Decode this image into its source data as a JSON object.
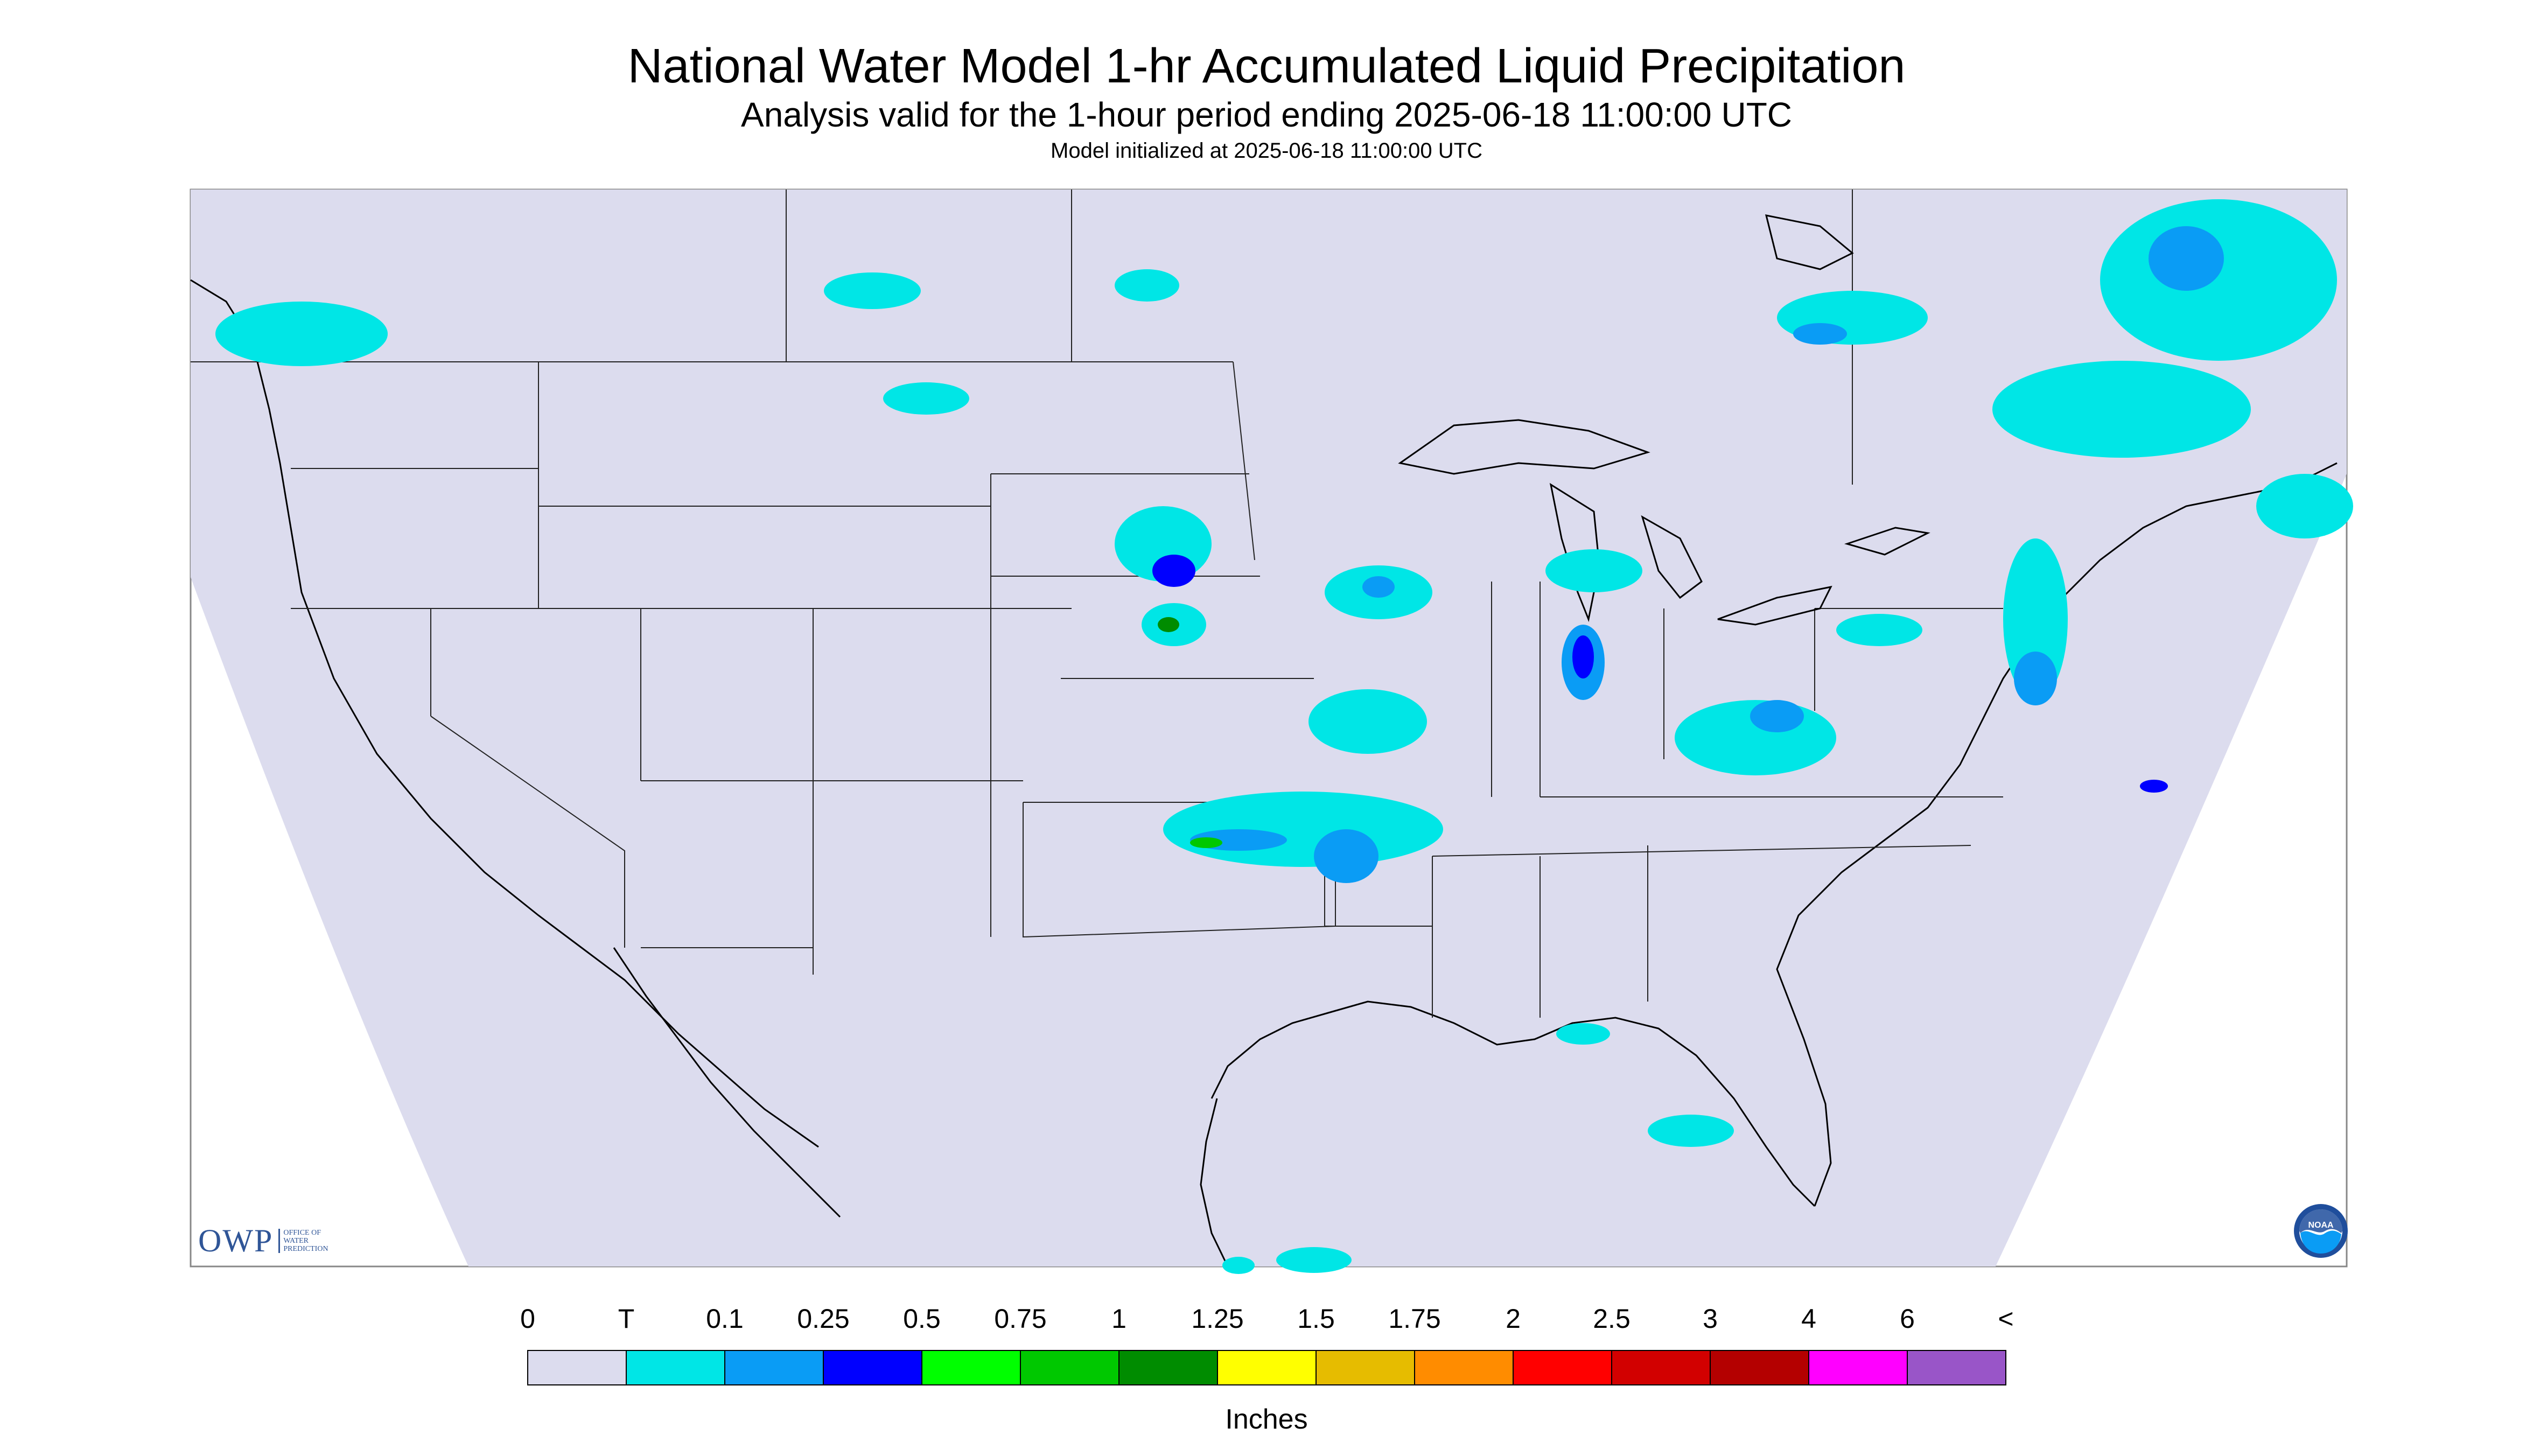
{
  "header": {
    "title": "National Water Model 1-hr Accumulated Liquid Precipitation",
    "subtitle": "Analysis valid for the 1-hour period ending 2025-06-18 11:00:00 UTC",
    "init": "Model initialized at 2025-06-18 11:00:00 UTC"
  },
  "legend": {
    "ticks": [
      "0",
      "T",
      "0.1",
      "0.25",
      "0.5",
      "0.75",
      "1",
      "1.25",
      "1.5",
      "1.75",
      "2",
      "2.5",
      "3",
      "4",
      "6",
      "<"
    ],
    "colors": [
      "#dcdcee",
      "#00e6e6",
      "#0a9cf5",
      "#0000ff",
      "#00ff00",
      "#00c800",
      "#008c00",
      "#ffff00",
      "#e6bc00",
      "#ff8c00",
      "#ff0000",
      "#d20000",
      "#b40000",
      "#ff00ff",
      "#9955c8"
    ],
    "units": "Inches"
  },
  "logos": {
    "owp_text": "OWP",
    "owp_sub": [
      "OFFICE OF",
      "WATER",
      "PREDICTION"
    ],
    "noaa_text": "NOAA"
  },
  "map": {
    "background_color": "#dcdcee",
    "nodata_color": "#ffffff",
    "border_color": "#000000"
  }
}
